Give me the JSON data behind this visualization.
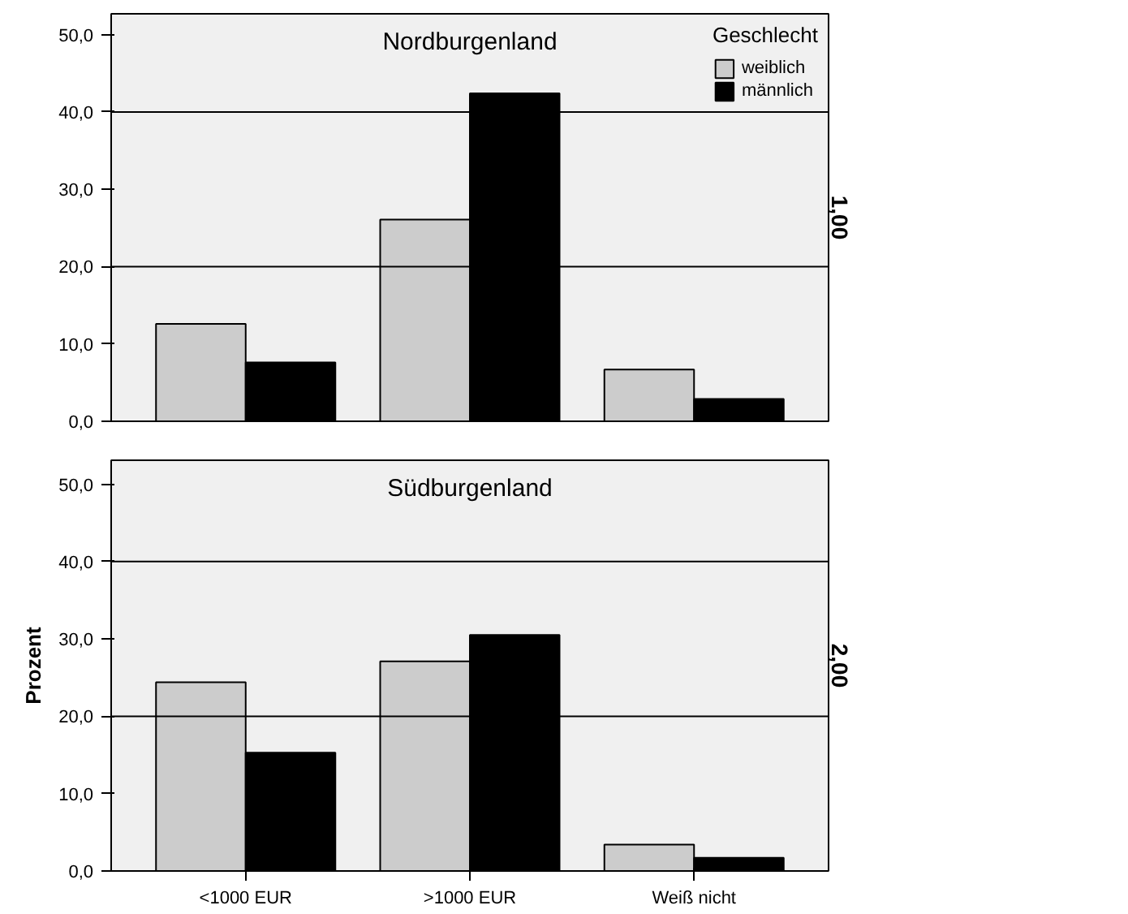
{
  "chart_data": [
    {
      "type": "bar",
      "title": "Nordburgenland",
      "legend_title": "Geschlecht",
      "legend": "top right",
      "tick_labels": "y",
      "annotations": [
        "1,00"
      ],
      "categories": [
        null,
        null,
        null
      ],
      "series": [
        {
          "name": "weiblich",
          "color": "#cccccc",
          "values": [
            12.6,
            26.1,
            6.7
          ]
        },
        {
          "name": "männlich",
          "color": "#000000",
          "values": [
            7.6,
            42.4,
            2.9
          ]
        }
      ],
      "ylim": [
        0,
        52.7
      ],
      "yticks": [
        {
          "value": 0,
          "label": "0,0"
        },
        {
          "value": 10,
          "label": "10,0"
        },
        {
          "value": 20,
          "label": "20,0"
        },
        {
          "value": 30,
          "label": "30,0"
        },
        {
          "value": 40,
          "label": "40,0"
        },
        {
          "value": 50,
          "label": "50,0"
        }
      ],
      "ref_lines": [
        {
          "axis": "y",
          "value": 20,
          "color": "#000000"
        },
        {
          "axis": "y",
          "value": 40,
          "color": "#000000"
        }
      ]
    },
    {
      "type": "bar",
      "title": "Südburgenland",
      "ylabel": "Prozent",
      "annotations": [
        "2,00"
      ],
      "categories": [
        "<1000 EUR",
        ">1000 EUR",
        "Weiß nicht"
      ],
      "series": [
        {
          "color": "#cccccc",
          "values": [
            24.4,
            27.1,
            3.4
          ]
        },
        {
          "color": "#000000",
          "values": [
            15.3,
            30.5,
            1.7
          ]
        }
      ],
      "ylim": [
        0,
        53.1
      ],
      "yticks": [
        {
          "value": 0,
          "label": "0,0"
        },
        {
          "value": 10,
          "label": "10,0"
        },
        {
          "value": 20,
          "label": "20,0"
        },
        {
          "value": 30,
          "label": "30,0"
        },
        {
          "value": 40,
          "label": "40,0"
        },
        {
          "value": 50,
          "label": "50,0"
        }
      ],
      "ref_lines": [
        {
          "axis": "y",
          "value": 20,
          "color": "#000000"
        },
        {
          "axis": "y",
          "value": 40,
          "color": "#000000"
        }
      ]
    }
  ]
}
